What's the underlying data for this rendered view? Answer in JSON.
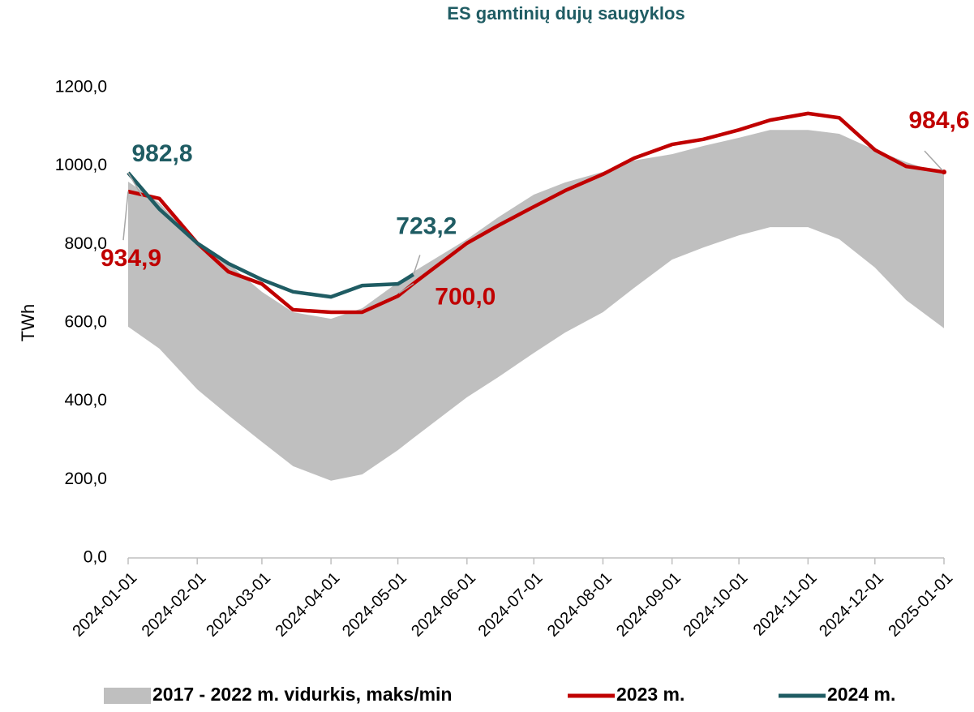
{
  "chart_data": {
    "type": "line",
    "title": "ES gamtinių dujų saugyklos",
    "y_label": "TWh",
    "x": [
      "2024-01-01",
      "2024-01-15",
      "2024-02-01",
      "2024-02-15",
      "2024-03-01",
      "2024-03-15",
      "2024-04-01",
      "2024-04-15",
      "2024-05-01",
      "2024-05-08",
      "2024-06-01",
      "2024-06-15",
      "2024-07-01",
      "2024-07-15",
      "2024-08-01",
      "2024-08-15",
      "2024-09-01",
      "2024-09-15",
      "2024-10-01",
      "2024-10-15",
      "2024-11-01",
      "2024-11-15",
      "2024-12-01",
      "2024-12-15",
      "2025-01-01"
    ],
    "band": {
      "name": "2017 - 2022 m. vidurkis, maks/min",
      "color": "#bfbfbf",
      "max": [
        960,
        906,
        803,
        751,
        679,
        627,
        610,
        637,
        703,
        730,
        813,
        869,
        927,
        958,
        985,
        1014,
        1030,
        1051,
        1072,
        1092,
        1092,
        1082,
        1041,
        1010,
        979
      ],
      "min": [
        590,
        534,
        430,
        364,
        296,
        234,
        197,
        213,
        275,
        306,
        410,
        461,
        523,
        575,
        627,
        689,
        761,
        792,
        823,
        844,
        844,
        813,
        741,
        658,
        586
      ]
    },
    "series": [
      {
        "name": "2023 m.",
        "color": "#c00000",
        "values": [
          934.9,
          917,
          803,
          730,
          699,
          633,
          627,
          627,
          668,
          700.0,
          803,
          848,
          896,
          937,
          979,
          1020,
          1055,
          1068,
          1092,
          1117,
          1134,
          1123,
          1041,
          999,
          984.6
        ],
        "value_labels": [
          "934,9",
          null,
          null,
          null,
          null,
          null,
          null,
          null,
          null,
          "700,0",
          null,
          null,
          null,
          null,
          null,
          null,
          null,
          null,
          null,
          null,
          null,
          null,
          null,
          null,
          "984,6"
        ]
      },
      {
        "name": "2024 m.",
        "color": "#1f5c63",
        "values": [
          982.8,
          890,
          803,
          751,
          710,
          679,
          666,
          695,
          699,
          723.2,
          null,
          null,
          null,
          null,
          null,
          null,
          null,
          null,
          null,
          null,
          null,
          null,
          null,
          null,
          null
        ],
        "value_labels": [
          "982,8",
          null,
          null,
          null,
          null,
          null,
          null,
          null,
          null,
          "723,2",
          null,
          null,
          null,
          null,
          null,
          null,
          null,
          null,
          null,
          null,
          null,
          null,
          null,
          null,
          null
        ]
      }
    ],
    "xlim": [
      "2024-01-01",
      "2025-01-01"
    ],
    "xticks": [
      "2024-01-01",
      "2024-02-01",
      "2024-03-01",
      "2024-04-01",
      "2024-05-01",
      "2024-06-01",
      "2024-07-01",
      "2024-08-01",
      "2024-09-01",
      "2024-10-01",
      "2024-11-01",
      "2024-12-01",
      "2025-01-01"
    ],
    "ylim": [
      0,
      1200
    ],
    "yticks": [
      {
        "value": 0,
        "label": "0,0"
      },
      {
        "value": 200,
        "label": "200,0"
      },
      {
        "value": 400,
        "label": "400,0"
      },
      {
        "value": 600,
        "label": "600,0"
      },
      {
        "value": 800,
        "label": "800,0"
      },
      {
        "value": 1000,
        "label": "1000,0"
      },
      {
        "value": 1200,
        "label": "1200,0"
      }
    ],
    "legend": "bottom",
    "grid": false
  }
}
